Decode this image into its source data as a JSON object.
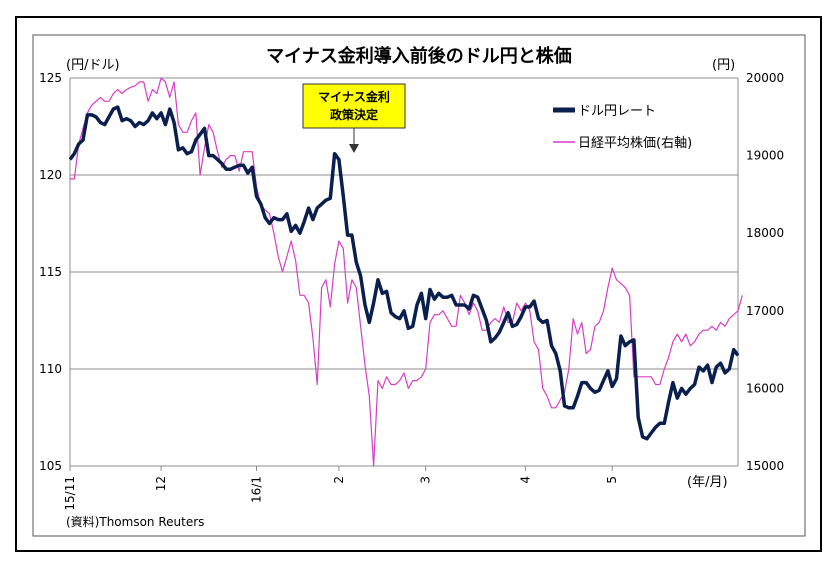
{
  "chart_data": {
    "type": "line",
    "title": "マイナス金利導入前後のドル円と株価",
    "left_axis_unit": "(円/ドル)",
    "right_axis_unit": "(円)",
    "x_axis_unit": "(年/月)",
    "source": "(資料)Thomson Reuters",
    "annotation": "マイナス金利\n政策決定",
    "y_left": {
      "min": 105,
      "max": 125,
      "ticks": [
        105,
        110,
        115,
        120,
        125
      ]
    },
    "y_right": {
      "min": 15000,
      "max": 20000,
      "ticks": [
        15000,
        16000,
        17000,
        18000,
        19000,
        20000
      ]
    },
    "x_ticks": [
      {
        "label": "15/11",
        "index": 0
      },
      {
        "label": "12",
        "index": 21
      },
      {
        "label": "16/1",
        "index": 43
      },
      {
        "label": "2",
        "index": 62
      },
      {
        "label": "3",
        "index": 82
      },
      {
        "label": "4",
        "index": 105
      },
      {
        "label": "5",
        "index": 125
      }
    ],
    "grid": "horizontal",
    "legend_position": "top-right",
    "series": [
      {
        "name": "ドル円レート",
        "axis": "left",
        "color": "#0b1f4f",
        "values": [
          120.8,
          121.1,
          121.6,
          121.8,
          123.1,
          123.1,
          123.0,
          122.7,
          122.6,
          123.0,
          123.4,
          123.5,
          122.8,
          122.9,
          122.8,
          122.5,
          122.7,
          122.6,
          122.8,
          123.2,
          122.9,
          123.2,
          122.6,
          123.4,
          122.7,
          121.3,
          121.4,
          121.1,
          121.2,
          121.8,
          122.1,
          122.4,
          121.0,
          121.0,
          120.8,
          120.6,
          120.3,
          120.3,
          120.4,
          120.5,
          120.5,
          120.1,
          120.4,
          118.9,
          118.5,
          117.8,
          117.5,
          117.8,
          117.7,
          117.7,
          118.0,
          117.1,
          117.4,
          117.0,
          117.6,
          118.3,
          117.7,
          118.3,
          118.5,
          118.7,
          118.8,
          121.1,
          120.8,
          118.9,
          116.9,
          116.9,
          115.5,
          114.8,
          113.3,
          112.4,
          113.4,
          114.6,
          113.9,
          114.0,
          112.9,
          112.7,
          112.6,
          113.0,
          112.1,
          112.2,
          113.3,
          113.9,
          112.6,
          114.1,
          113.6,
          113.9,
          113.7,
          113.7,
          113.8,
          113.3,
          113.3,
          113.3,
          113.1,
          113.8,
          113.7,
          113.1,
          112.5,
          111.4,
          111.6,
          111.9,
          112.4,
          112.9,
          112.2,
          112.3,
          112.7,
          113.2,
          113.2,
          113.5,
          112.6,
          112.4,
          112.5,
          111.2,
          110.8,
          109.9,
          108.1,
          108.0,
          108.0,
          108.6,
          109.3,
          109.3,
          109.0,
          108.8,
          108.9,
          109.4,
          109.9,
          109.1,
          109.5,
          111.7,
          111.2,
          111.4,
          111.5,
          107.5,
          106.5,
          106.4,
          106.7,
          107.0,
          107.2,
          107.2,
          108.3,
          109.3,
          108.5,
          109.0,
          108.7,
          109.0,
          109.2,
          110.1,
          109.9,
          110.2,
          109.3,
          110.1,
          110.3,
          109.8,
          110.0,
          111.0,
          110.7
        ]
      },
      {
        "name": "日経平均株価(右軸)",
        "axis": "right",
        "color": "#d63fc4",
        "values": [
          18700,
          18700,
          19150,
          19350,
          19550,
          19650,
          19700,
          19750,
          19700,
          19700,
          19800,
          19850,
          19800,
          19850,
          19880,
          19900,
          19950,
          19950,
          19700,
          19850,
          19800,
          20000,
          19950,
          19750,
          19950,
          19400,
          19300,
          19300,
          19450,
          19550,
          18750,
          19100,
          19400,
          19300,
          19050,
          18850,
          18950,
          19000,
          19000,
          18800,
          19050,
          19050,
          19050,
          18600,
          18350,
          18300,
          18250,
          18000,
          17700,
          17500,
          17700,
          17900,
          17650,
          17200,
          17200,
          17100,
          16650,
          16050,
          17300,
          17400,
          17050,
          17600,
          17900,
          17800,
          17100,
          17400,
          17300,
          16800,
          16300,
          15900,
          15000,
          16100,
          16000,
          16150,
          16050,
          16050,
          16100,
          16200,
          16000,
          16100,
          16100,
          16150,
          16250,
          16850,
          16950,
          16950,
          17000,
          16900,
          16800,
          16800,
          17200,
          17100,
          16950,
          17100,
          17000,
          16750,
          16750,
          16850,
          16900,
          16850,
          17050,
          16850,
          16850,
          17100,
          17000,
          17100,
          17000,
          16600,
          16500,
          16000,
          15900,
          15750,
          15750,
          15850,
          15950,
          16250,
          16900,
          16700,
          16850,
          16450,
          16500,
          16800,
          16850,
          17000,
          17300,
          17550,
          17400,
          17350,
          17300,
          17200,
          16150,
          16150,
          16150,
          16150,
          16150,
          16050,
          16050,
          16250,
          16400,
          16600,
          16700,
          16600,
          16700,
          16550,
          16600,
          16700,
          16750,
          16750,
          16800,
          16750,
          16850,
          16800,
          16900,
          16950,
          17000,
          17200
        ]
      }
    ]
  }
}
